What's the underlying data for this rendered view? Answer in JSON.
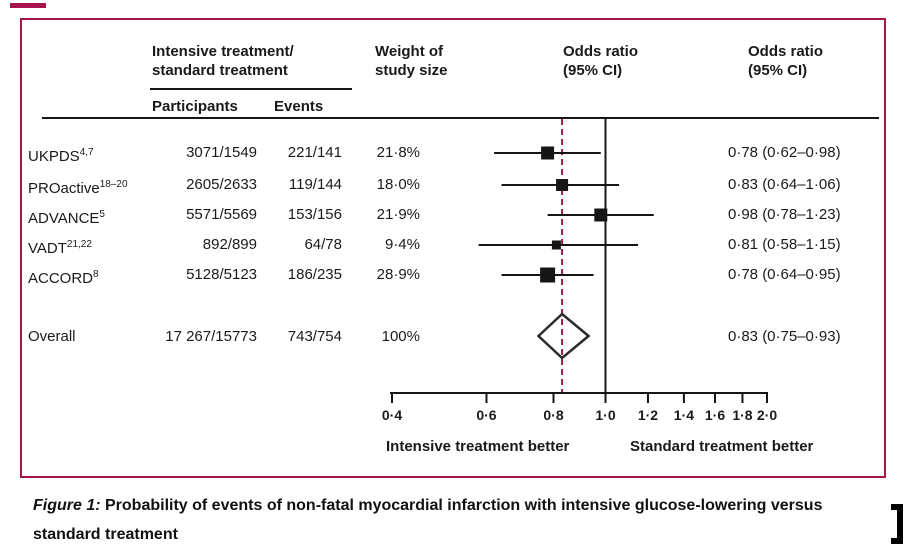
{
  "page": {
    "accent_border": "#a8134b"
  },
  "header": {
    "group_line1": "Intensive treatment/",
    "group_line2": "standard treatment",
    "participants": "Participants",
    "events": "Events",
    "weight_line1": "Weight of",
    "weight_line2": "study size",
    "or_plot_line1": "Odds ratio",
    "or_plot_line2": "(95% CI)",
    "or_col_line1": "Odds ratio",
    "or_col_line2": "(95% CI)"
  },
  "chart_data": {
    "type": "forest",
    "x_scale": "log",
    "x_min": 0.4,
    "x_max": 2.0,
    "reference_value": 1.0,
    "overall_value": 0.83,
    "overall_line_color": "#9c1b41",
    "axis_ticks": [
      0.4,
      0.6,
      0.8,
      1.0,
      1.2,
      1.4,
      1.6,
      1.8,
      2.0
    ],
    "tick_labels": [
      "0·4",
      "0·6",
      "0·8",
      "1·0",
      "1·2",
      "1·4",
      "1·6",
      "1·8",
      "2·0"
    ],
    "left_better_label": "Intensive treatment better",
    "right_better_label": "Standard treatment better",
    "studies": [
      {
        "name": "UKPDS",
        "ref_sup": "4,7",
        "participants": "3071/1549",
        "events": "221/141",
        "weight_label": "21·8%",
        "weight_pct": 21.8,
        "or": 0.78,
        "ci_low": 0.62,
        "ci_high": 0.98,
        "or_ci_label": "0·78 (0·62–0·98)"
      },
      {
        "name": "PROactive",
        "ref_sup": "18–20",
        "participants": "2605/2633",
        "events": "119/144",
        "weight_label": "18·0%",
        "weight_pct": 18.0,
        "or": 0.83,
        "ci_low": 0.64,
        "ci_high": 1.06,
        "or_ci_label": "0·83 (0·64–1·06)"
      },
      {
        "name": "ADVANCE",
        "ref_sup": "5",
        "participants": "5571/5569",
        "events": "153/156",
        "weight_label": "21·9%",
        "weight_pct": 21.9,
        "or": 0.98,
        "ci_low": 0.78,
        "ci_high": 1.23,
        "or_ci_label": "0·98 (0·78–1·23)"
      },
      {
        "name": "VADT",
        "ref_sup": "21,22",
        "participants": "892/899",
        "events": "64/78",
        "weight_label": "9·4%",
        "weight_pct": 9.4,
        "or": 0.81,
        "ci_low": 0.58,
        "ci_high": 1.15,
        "or_ci_label": "0·81 (0·58–1·15)"
      },
      {
        "name": "ACCORD",
        "ref_sup": "8",
        "participants": "5128/5123",
        "events": "186/235",
        "weight_label": "28·9%",
        "weight_pct": 28.9,
        "or": 0.78,
        "ci_low": 0.64,
        "ci_high": 0.95,
        "or_ci_label": "0·78 (0·64–0·95)"
      }
    ],
    "overall": {
      "name": "Overall",
      "participants": "17 267/15773",
      "events": "743/754",
      "weight_label": "100%",
      "weight_pct": 100,
      "or": 0.83,
      "ci_low": 0.75,
      "ci_high": 0.93,
      "or_ci_label": "0·83 (0·75–0·93)"
    }
  },
  "caption": {
    "prefix": "Figure 1:",
    "text": " Probability of events of non-fatal myocardial infarction with intensive glucose-lowering versus standard treatment"
  }
}
